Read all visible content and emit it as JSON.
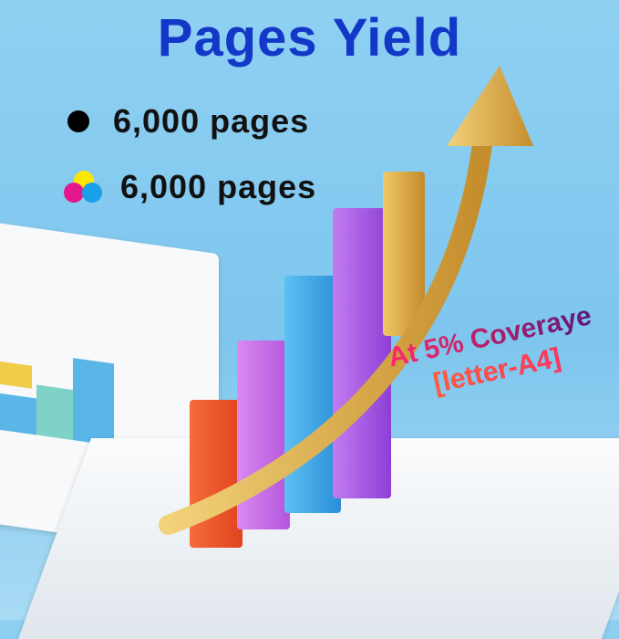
{
  "title": "Pages Yield",
  "yields": [
    {
      "icon": "black-ink-dot-icon",
      "label": "6,000 pages"
    },
    {
      "icon": "color-ink-dots-icon",
      "label": "6,000 pages"
    }
  ],
  "coverage": {
    "line1": "At 5% Coveraye",
    "line2": "[letter-A4]"
  },
  "colors": {
    "title": "#1338c8",
    "bars": [
      "#f0552e",
      "#c46ae6",
      "#3aa6e8",
      "#a64fe0",
      "#d9a640"
    ],
    "arrow": "#d8a94a"
  }
}
